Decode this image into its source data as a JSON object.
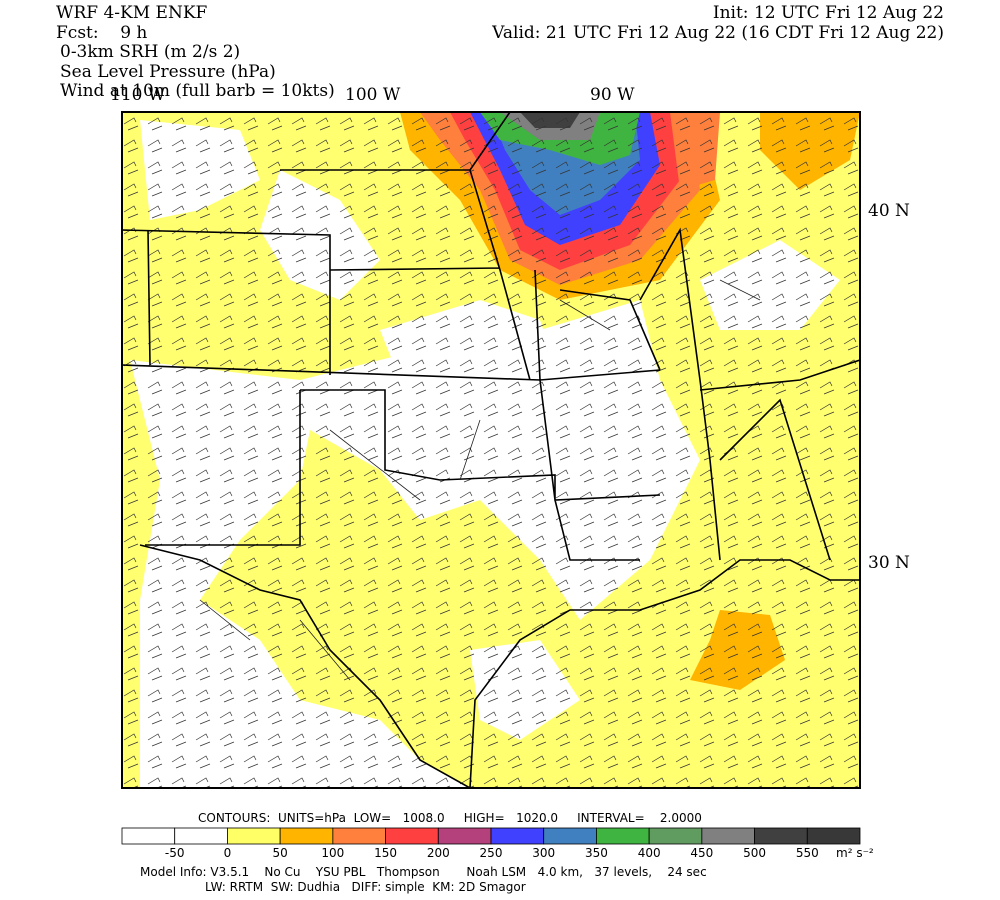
{
  "header": {
    "model": "WRF 4-KM ENKF",
    "forecast": "Fcst:    9 h",
    "fields": [
      "0-3km SRH (m 2/s 2)",
      "Sea Level Pressure (hPa)",
      "Wind at 10m (full barb = 10kts)"
    ],
    "init": "Init: 12 UTC Fri 12 Aug 22",
    "valid": "Valid: 21 UTC Fri 12 Aug 22 (16 CDT Fri 12 Aug 22)"
  },
  "map": {
    "lon_labels": [
      "110 W",
      "100 W",
      "90 W"
    ],
    "lat_labels": [
      "40 N",
      "30 N"
    ]
  },
  "contours": "CONTOURS:  UNITS=hPa  LOW=   1008.0     HIGH=   1020.0     INTERVAL=    2.0000",
  "colorbar": {
    "colors": [
      "#ffffff",
      "#ffffff",
      "#ffff66",
      "#ffb400",
      "#ff7f3c",
      "#ff4040",
      "#b4407c",
      "#4040ff",
      "#4080c0",
      "#40b440",
      "#609c60",
      "#808080",
      "#404040",
      "#383838"
    ],
    "ticks": [
      -50,
      0,
      50,
      100,
      150,
      200,
      250,
      300,
      350,
      400,
      450,
      500,
      550
    ],
    "unit": "m² s⁻²"
  },
  "footer": [
    "Model Info: V3.5.1    No Cu    YSU PBL   Thompson       Noah LSM   4.0 km,   37 levels,    24 sec",
    "LW: RRTM  SW: Dudhia   DIFF: simple  KM: 2D Smagor"
  ]
}
